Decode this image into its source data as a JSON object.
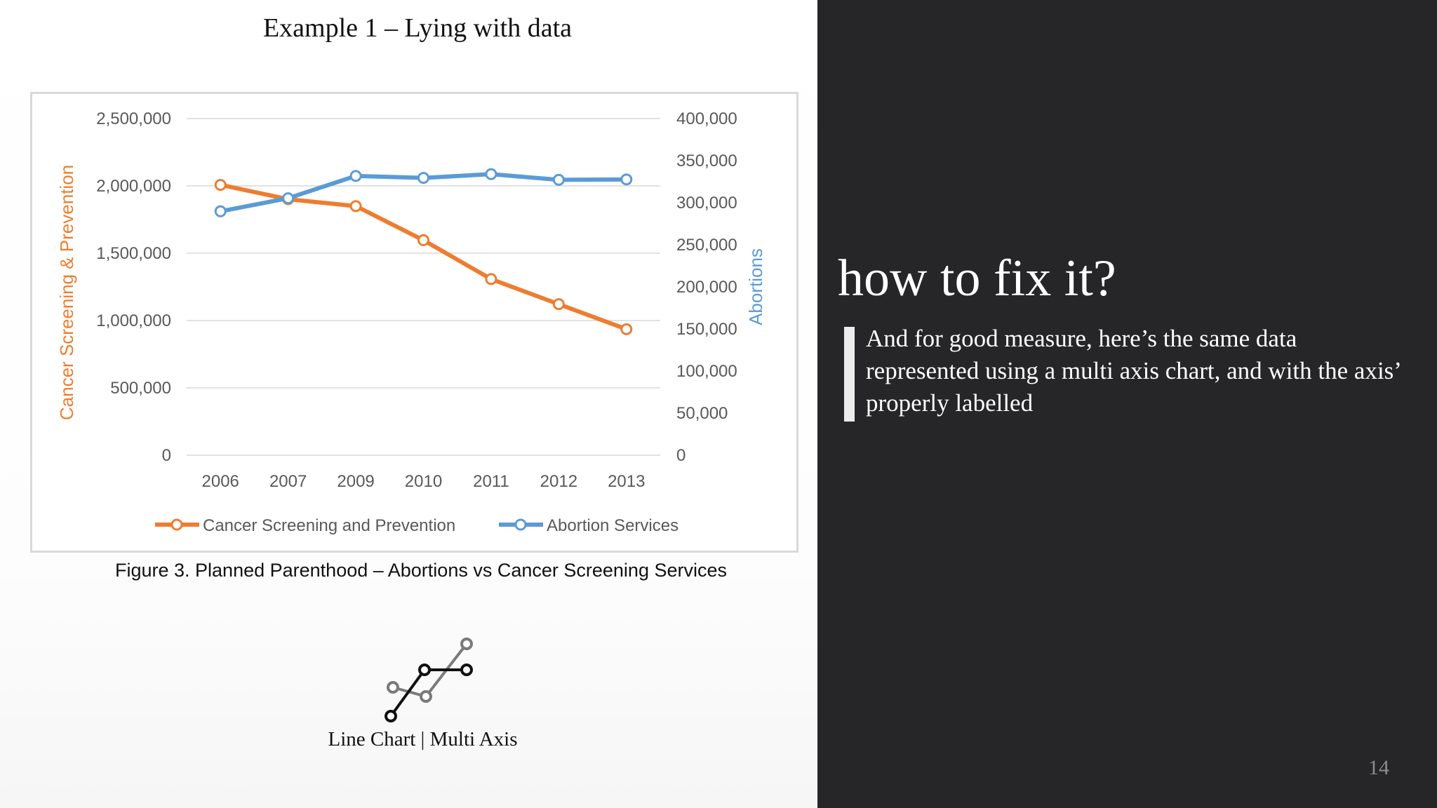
{
  "slide": {
    "title": "Example 1 – Lying with data",
    "figure_caption": "Figure 3. Planned Parenthood – Abortions vs Cancer Screening Services",
    "chart_type_label": "Line Chart | Multi Axis",
    "heading": "how to fix it?",
    "body": "And for good measure, here’s the same data represented using a multi axis chart, and with the axis’ properly labelled",
    "page_number": "14"
  },
  "chart_data": {
    "type": "line",
    "categories": [
      "2006",
      "2007",
      "2009",
      "2010",
      "2011",
      "2012",
      "2013"
    ],
    "ylabel": "Cancer Screening & Prevention",
    "y2label": "Abortions",
    "ylim": [
      0,
      2500000
    ],
    "y2lim": [
      0,
      400000
    ],
    "yticks": [
      "0",
      "500,000",
      "1,000,000",
      "1,500,000",
      "2,000,000",
      "2,500,000"
    ],
    "y2ticks": [
      "0",
      "50,000",
      "100,000",
      "150,000",
      "200,000",
      "250,000",
      "300,000",
      "350,000",
      "400,000"
    ],
    "grid": true,
    "legend": "bottom",
    "series": [
      {
        "name": "Cancer Screening and Prevention",
        "axis": "left",
        "color": "#ed7d31",
        "values": [
          2007371,
          1900850,
          1849691,
          1596741,
          1307803,
          1121580,
          935573
        ]
      },
      {
        "name": "Abortion Services",
        "axis": "right",
        "color": "#5b9bd5",
        "values": [
          289750,
          305310,
          331796,
          329445,
          333964,
          327166,
          327653
        ]
      }
    ]
  }
}
